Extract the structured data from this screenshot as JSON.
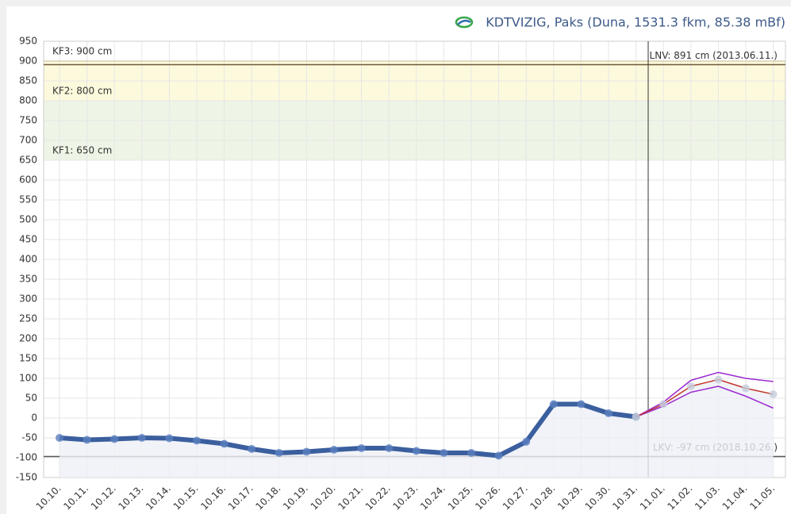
{
  "chart_data": {
    "type": "line",
    "title": "KDTVIZIG, Paks (Duna, 1531.3 fkm, 85.38 mBf)",
    "categories": [
      "10.10.",
      "10.11.",
      "10.12.",
      "10.13.",
      "10.14.",
      "10.15.",
      "10.16.",
      "10.17.",
      "10.18.",
      "10.19.",
      "10.20.",
      "10.21.",
      "10.22.",
      "10.23.",
      "10.24.",
      "10.25.",
      "10.26.",
      "10.27.",
      "10.28.",
      "10.29.",
      "10.30.",
      "10.31.",
      "11.01.",
      "11.02.",
      "11.03.",
      "11.04.",
      "11.05."
    ],
    "series": [
      {
        "color": "#3b5f9e",
        "values": [
          -50,
          -55,
          -53,
          -50,
          -51,
          -57,
          -65,
          -78,
          -88,
          -85,
          -80,
          -76,
          -76,
          -83,
          -88,
          -88,
          -95,
          -60,
          35,
          35,
          12,
          3,
          null,
          null,
          null,
          null,
          null
        ]
      },
      {
        "color": "#9c2bd0",
        "values": [
          null,
          null,
          null,
          null,
          null,
          null,
          null,
          null,
          null,
          null,
          null,
          null,
          null,
          null,
          null,
          null,
          null,
          null,
          null,
          null,
          null,
          3,
          40,
          95,
          115,
          100,
          92
        ]
      },
      {
        "color": "#9c2bd0",
        "values": [
          null,
          null,
          null,
          null,
          null,
          null,
          null,
          null,
          null,
          null,
          null,
          null,
          null,
          null,
          null,
          null,
          null,
          null,
          null,
          null,
          null,
          3,
          30,
          65,
          80,
          55,
          25
        ]
      },
      {
        "color": "#c0392b",
        "values": [
          null,
          null,
          null,
          null,
          null,
          null,
          null,
          null,
          null,
          null,
          null,
          null,
          null,
          null,
          null,
          null,
          null,
          null,
          null,
          null,
          null,
          3,
          35,
          80,
          97,
          75,
          60
        ]
      }
    ],
    "thresholds": [
      {
        "label": "KF3: 900 cm",
        "value": 900,
        "color": "#fdf9dc"
      },
      {
        "label": "KF2: 800 cm",
        "value": 800,
        "color": "#fdf9dc"
      },
      {
        "label": "KF1: 650 cm",
        "value": 650,
        "color": "#eef5e6"
      }
    ],
    "reference_lines": [
      {
        "label": "LNV: 891 cm (2013.06.11.)",
        "value": 891
      },
      {
        "label": "LKV: -97 cm (2018.10.26.)",
        "value": -97
      }
    ],
    "ylim": [
      -150,
      950
    ],
    "yticks": [
      -150,
      -100,
      -50,
      0,
      50,
      100,
      150,
      200,
      250,
      300,
      350,
      400,
      450,
      500,
      550,
      600,
      650,
      700,
      750,
      800,
      850,
      900,
      950
    ],
    "grid": true
  }
}
